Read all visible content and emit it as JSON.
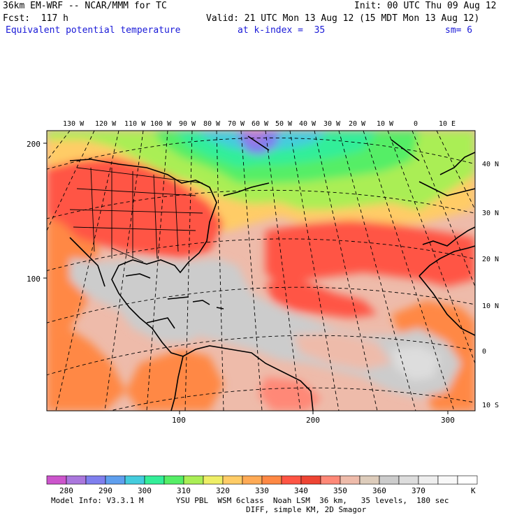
{
  "header": {
    "model": "36km EM-WRF -- NCAR/MMM for TC",
    "init": "Init: 00 UTC Thu 09 Aug 12",
    "fcst": "Fcst:  117 h",
    "valid": "Valid: 21 UTC Mon 13 Aug 12 (15 MDT Mon 13 Aug 12)",
    "field": "Equivalent potential temperature",
    "level": "at k-index =  35",
    "smooth": "sm= 6"
  },
  "map": {
    "lon_labels": [
      "130 W",
      "120 W",
      "110 W",
      "100 W",
      "90 W",
      "80 W",
      "70 W",
      "60 W",
      "50 W",
      "40 W",
      "30 W",
      "20 W",
      "10 W",
      "0",
      "10 E"
    ],
    "lat_labels": [
      "40 N",
      "30 N",
      "20 N",
      "10 N",
      "0",
      "10 S"
    ],
    "y_grid_labels": [
      "200",
      "100"
    ],
    "x_grid_labels": [
      "100",
      "200",
      "300"
    ]
  },
  "colorbar": {
    "colors": [
      "#cc55cc",
      "#aa77dd",
      "#7f7fee",
      "#5f9fee",
      "#44ccdd",
      "#33ee99",
      "#55ee66",
      "#aaee55",
      "#eeee66",
      "#ffcc66",
      "#ffaa55",
      "#ff8844",
      "#ff5544",
      "#ee4433",
      "#ff8877",
      "#eebbaa",
      "#ddccbb",
      "#cccccc",
      "#dddddd",
      "#eeeeee",
      "#f8f8f8",
      "#ffffff"
    ],
    "labels": [
      "280",
      "290",
      "300",
      "310",
      "320",
      "330",
      "340",
      "350",
      "360",
      "370"
    ],
    "unit": "K"
  },
  "footer": {
    "line1": "Model Info: V3.3.1 M       YSU PBL  WSM 6class  Noah LSM  36 km,   35 levels,  180 sec",
    "line2": "DIFF, simple KM, 2D Smagor"
  }
}
